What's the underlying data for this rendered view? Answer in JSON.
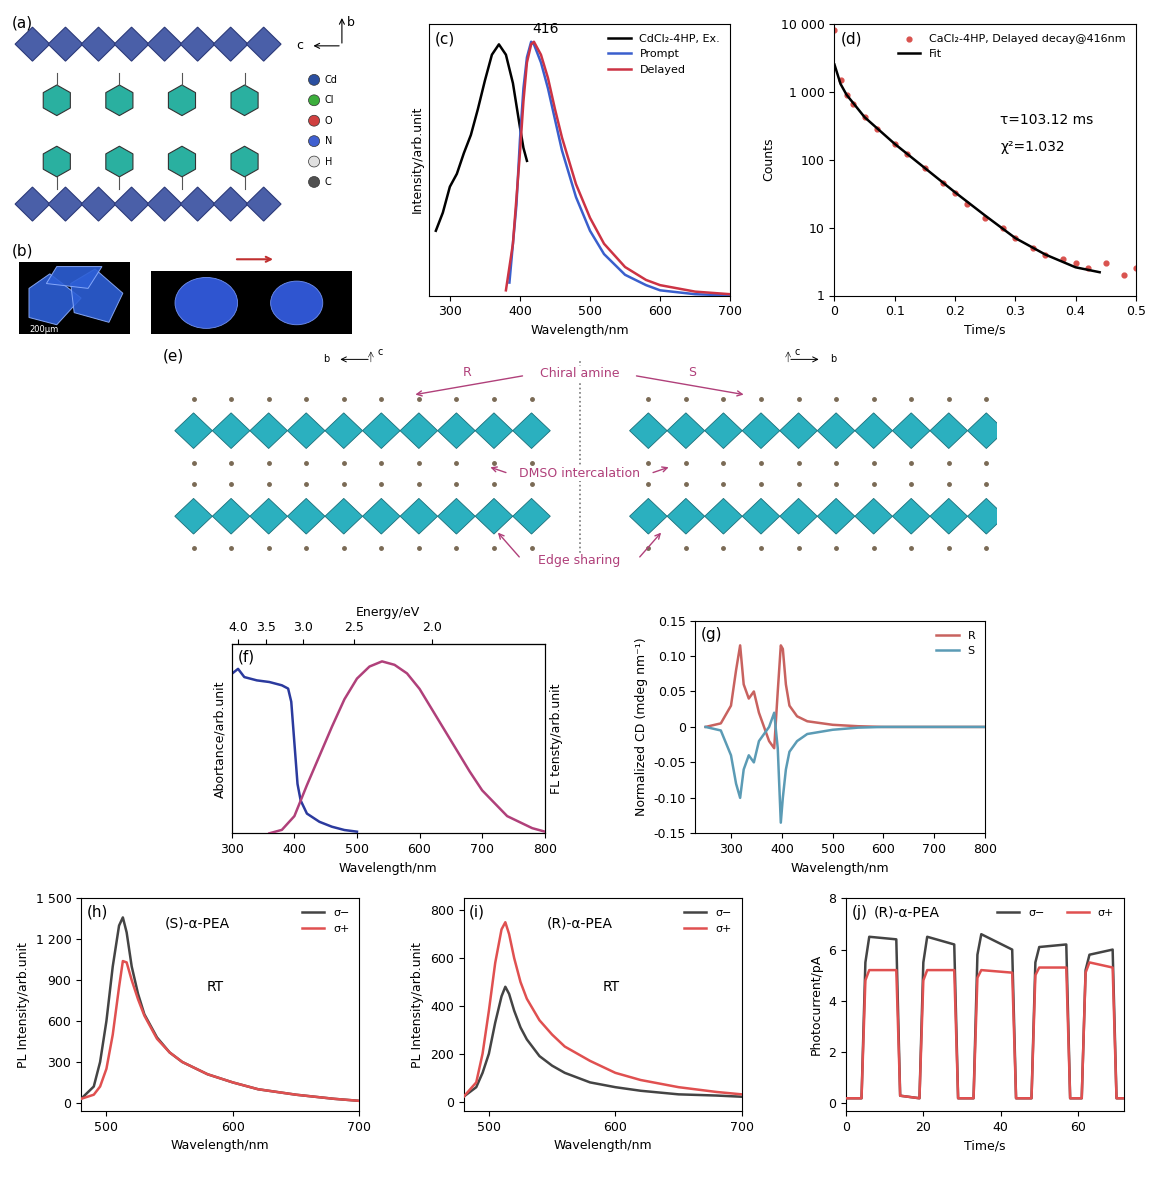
{
  "chart_data": [
    {
      "panel": "(c)",
      "type": "line",
      "xlabel": "Wavelength/nm",
      "ylabel": "Intensity/arb.unit",
      "xlim": [
        270,
        700
      ],
      "xticks": [
        300,
        400,
        500,
        600,
        700
      ],
      "ylim": [
        0,
        1.05
      ],
      "yticks": [],
      "tick_labels": "x",
      "legend": "upper right",
      "annotations": [
        "416"
      ],
      "series": [
        {
          "name": "CdCl₂-4HP, Ex.",
          "color": "#000000",
          "x": [
            280,
            290,
            300,
            310,
            320,
            330,
            340,
            350,
            360,
            370,
            380,
            390,
            400,
            405,
            410
          ],
          "values": [
            0.25,
            0.32,
            0.42,
            0.47,
            0.55,
            0.62,
            0.72,
            0.83,
            0.93,
            0.97,
            0.93,
            0.82,
            0.65,
            0.57,
            0.52
          ]
        },
        {
          "name": "Prompt",
          "color": "#3a5fcd",
          "x": [
            385,
            395,
            400,
            405,
            410,
            416,
            420,
            430,
            440,
            450,
            460,
            480,
            500,
            520,
            550,
            580,
            600,
            650,
            700
          ],
          "values": [
            0.05,
            0.35,
            0.6,
            0.8,
            0.92,
            0.98,
            0.97,
            0.9,
            0.8,
            0.68,
            0.56,
            0.38,
            0.25,
            0.16,
            0.08,
            0.04,
            0.02,
            0.005,
            0
          ]
        },
        {
          "name": "Delayed",
          "color": "#cc3344",
          "x": [
            380,
            390,
            400,
            405,
            410,
            416,
            420,
            430,
            440,
            450,
            460,
            480,
            500,
            520,
            550,
            580,
            600,
            650,
            700
          ],
          "values": [
            0.02,
            0.2,
            0.55,
            0.75,
            0.9,
            0.97,
            0.98,
            0.93,
            0.84,
            0.72,
            0.61,
            0.43,
            0.3,
            0.2,
            0.11,
            0.06,
            0.04,
            0.015,
            0.005
          ]
        }
      ]
    },
    {
      "panel": "(d)",
      "type": "scatter",
      "log": "y",
      "xlabel": "Time/s",
      "ylabel": "Counts",
      "xlim": [
        0,
        0.5
      ],
      "xticks": [
        0,
        0.1,
        0.2,
        0.3,
        0.4,
        0.5
      ],
      "ylim": [
        1,
        10000
      ],
      "yticks": [
        1,
        10,
        100,
        {
          "value": 1000,
          "label": "1 000"
        },
        {
          "value": 10000,
          "label": "10 000"
        }
      ],
      "legend": "upper right",
      "annotations": [
        "τ=103.12 ms",
        "χ²=1.032"
      ],
      "series": [
        {
          "name": "CaCl₂-4HP, Delayed decay@416nm",
          "color": "#d9534f",
          "type": "scatter",
          "marker": "o",
          "x": [
            0,
            0.01,
            0.02,
            0.03,
            0.05,
            0.07,
            0.1,
            0.12,
            0.15,
            0.18,
            0.2,
            0.22,
            0.25,
            0.28,
            0.3,
            0.33,
            0.35,
            0.38,
            0.4,
            0.42,
            0.45,
            0.48,
            0.5
          ],
          "values": [
            8000,
            1500,
            900,
            650,
            420,
            280,
            170,
            120,
            75,
            45,
            32,
            22,
            14,
            10,
            7,
            5,
            4,
            3.5,
            3,
            2.5,
            3,
            2,
            2.5
          ]
        },
        {
          "name": "Fit",
          "color": "#000000",
          "type": "line",
          "x": [
            0,
            0.01,
            0.02,
            0.05,
            0.1,
            0.15,
            0.2,
            0.25,
            0.3,
            0.35,
            0.4,
            0.44
          ],
          "values": [
            2500,
            1300,
            900,
            420,
            170,
            75,
            33,
            15,
            7,
            4,
            2.6,
            2.2
          ]
        }
      ]
    },
    {
      "panel": "(f)",
      "type": "line",
      "xlabel": "Wavelength/nm",
      "ylabel": "Abortance/arb.unit",
      "y2label": "FL tensty/arb.unit",
      "x2label": "Energy/eV",
      "x2ticks": [
        4.0,
        3.5,
        3.0,
        2.5,
        2.0
      ],
      "xlim": [
        300,
        800
      ],
      "xticks": [
        300,
        400,
        500,
        600,
        700,
        800
      ],
      "ylim": [
        0,
        1.15
      ],
      "yticks": [],
      "y2lim": [
        0,
        1.1
      ],
      "y2ticks": [],
      "tick_labels": "x",
      "series": [
        {
          "name": "Abortance",
          "color": "#2b3a9e",
          "x": [
            300,
            310,
            320,
            340,
            360,
            380,
            390,
            395,
            400,
            405,
            410,
            420,
            440,
            460,
            480,
            500
          ],
          "values": [
            0.97,
            1.0,
            0.95,
            0.93,
            0.92,
            0.9,
            0.88,
            0.8,
            0.55,
            0.3,
            0.2,
            0.12,
            0.07,
            0.04,
            0.02,
            0.01
          ]
        },
        {
          "name": "FL",
          "color": "#b0407a",
          "axis": "y2",
          "x": [
            360,
            380,
            400,
            420,
            440,
            460,
            480,
            500,
            520,
            540,
            560,
            580,
            600,
            620,
            640,
            660,
            680,
            700,
            740,
            780,
            800
          ],
          "values": [
            0,
            0.02,
            0.1,
            0.28,
            0.45,
            0.62,
            0.78,
            0.9,
            0.97,
            1.0,
            0.98,
            0.93,
            0.84,
            0.72,
            0.6,
            0.48,
            0.36,
            0.25,
            0.1,
            0.03,
            0.01
          ]
        }
      ]
    },
    {
      "panel": "(g)",
      "type": "line",
      "xlabel": "Wavelength/nm",
      "ylabel": "Normalized CD (mdeg nm⁻¹)",
      "xlim": [
        230,
        800
      ],
      "xticks": [
        300,
        400,
        500,
        600,
        700,
        800
      ],
      "ylim": [
        -0.15,
        0.15
      ],
      "yticks": [
        {
          "value": -0.15,
          "label": "-0.15"
        },
        {
          "value": -0.1,
          "label": "-0.10"
        },
        {
          "value": -0.05,
          "label": "-0.05"
        },
        0,
        {
          "value": 0.05,
          "label": "0.05"
        },
        {
          "value": 0.1,
          "label": "0.10"
        },
        {
          "value": 0.15,
          "label": "0.15"
        }
      ],
      "legend": "upper right",
      "series": [
        {
          "name": "R",
          "color": "#c8625f",
          "x": [
            250,
            280,
            300,
            310,
            318,
            325,
            335,
            345,
            355,
            365,
            375,
            385,
            392,
            398,
            402,
            408,
            415,
            430,
            450,
            500,
            550,
            600,
            650,
            700,
            800
          ],
          "values": [
            0,
            0.005,
            0.03,
            0.08,
            0.115,
            0.06,
            0.04,
            0.05,
            0.02,
            0.0,
            -0.02,
            -0.03,
            0.05,
            0.115,
            0.11,
            0.06,
            0.03,
            0.015,
            0.008,
            0.003,
            0.001,
            0,
            0,
            0,
            0
          ]
        },
        {
          "name": "S",
          "color": "#5b9bb5",
          "x": [
            250,
            280,
            300,
            310,
            318,
            325,
            335,
            345,
            355,
            365,
            375,
            385,
            392,
            398,
            402,
            408,
            415,
            430,
            450,
            500,
            550,
            600,
            650,
            700,
            800
          ],
          "values": [
            0,
            -0.005,
            -0.04,
            -0.08,
            -0.1,
            -0.06,
            -0.04,
            -0.05,
            -0.02,
            -0.01,
            0.0,
            0.02,
            -0.03,
            -0.135,
            -0.1,
            -0.06,
            -0.035,
            -0.02,
            -0.01,
            -0.004,
            -0.001,
            0,
            0,
            0,
            0
          ]
        }
      ]
    },
    {
      "panel": "(h)",
      "type": "line",
      "xlabel": "Wavelength/nm",
      "ylabel": "PL Intensity/arb.unit",
      "xlim": [
        480,
        700
      ],
      "xticks": [
        500,
        600,
        700
      ],
      "ylim": [
        -60,
        1500
      ],
      "yticks": [
        0,
        300,
        600,
        900,
        {
          "value": 1200,
          "label": "1 200"
        },
        {
          "value": 1500,
          "label": "1 500"
        }
      ],
      "legend": "upper right",
      "annotations": [
        "(S)-α-PEA",
        "RT"
      ],
      "series": [
        {
          "name": "σ−",
          "color": "#444444",
          "x": [
            480,
            490,
            495,
            500,
            505,
            510,
            513,
            516,
            520,
            525,
            530,
            540,
            550,
            560,
            580,
            600,
            620,
            650,
            680,
            700
          ],
          "values": [
            30,
            120,
            300,
            600,
            1000,
            1300,
            1360,
            1250,
            1000,
            800,
            650,
            480,
            370,
            300,
            210,
            150,
            100,
            60,
            30,
            15
          ]
        },
        {
          "name": "σ+",
          "color": "#e05050",
          "x": [
            480,
            490,
            495,
            500,
            505,
            510,
            513,
            516,
            520,
            525,
            530,
            540,
            550,
            560,
            580,
            600,
            620,
            650,
            680,
            700
          ],
          "values": [
            30,
            60,
            120,
            250,
            500,
            850,
            1040,
            1030,
            900,
            760,
            640,
            470,
            370,
            300,
            210,
            150,
            100,
            60,
            30,
            15
          ]
        }
      ]
    },
    {
      "panel": "(i)",
      "type": "line",
      "xlabel": "Wavelength/nm",
      "ylabel": "PL Intensity/arb.unit",
      "xlim": [
        480,
        700
      ],
      "xticks": [
        500,
        600,
        700
      ],
      "ylim": [
        -40,
        850
      ],
      "yticks": [
        0,
        200,
        400,
        600,
        800
      ],
      "legend": "upper right",
      "annotations": [
        "(R)-α-PEA",
        "RT"
      ],
      "series": [
        {
          "name": "σ−",
          "color": "#444444",
          "x": [
            480,
            490,
            495,
            500,
            505,
            510,
            513,
            516,
            520,
            525,
            530,
            540,
            550,
            560,
            580,
            600,
            620,
            650,
            680,
            700
          ],
          "values": [
            20,
            60,
            120,
            200,
            330,
            440,
            480,
            450,
            380,
            310,
            260,
            190,
            150,
            120,
            80,
            60,
            45,
            30,
            25,
            20
          ]
        },
        {
          "name": "σ+",
          "color": "#e05050",
          "x": [
            480,
            490,
            495,
            500,
            505,
            510,
            513,
            516,
            520,
            525,
            530,
            540,
            550,
            560,
            580,
            600,
            620,
            650,
            680,
            700
          ],
          "values": [
            20,
            80,
            200,
            380,
            580,
            720,
            750,
            700,
            600,
            500,
            430,
            340,
            280,
            230,
            170,
            120,
            90,
            60,
            40,
            30
          ]
        }
      ]
    },
    {
      "panel": "(j)",
      "type": "line",
      "xlabel": "Time/s",
      "ylabel": "Photocurrent/pA",
      "xlim": [
        0,
        72
      ],
      "xticks": [
        0,
        20,
        40,
        60
      ],
      "ylim": [
        -0.3,
        8
      ],
      "yticks": [
        0,
        2,
        4,
        6,
        8
      ],
      "legend": "upper right",
      "annotations": [
        "(R)-α-PEA"
      ],
      "series": [
        {
          "name": "σ−",
          "color": "#444444",
          "x": [
            0,
            4,
            5,
            6,
            13,
            14,
            19,
            20,
            21,
            28,
            29,
            33,
            34,
            35,
            43,
            44,
            48,
            49,
            50,
            57,
            58,
            61,
            62,
            63,
            69,
            70,
            72
          ],
          "values": [
            0.2,
            0.2,
            5.5,
            6.5,
            6.4,
            0.3,
            0.2,
            5.5,
            6.5,
            6.2,
            0.2,
            0.2,
            5.8,
            6.6,
            6.0,
            0.2,
            0.2,
            5.5,
            6.1,
            6.2,
            0.2,
            0.2,
            5.2,
            5.8,
            6.0,
            0.2,
            0.2
          ]
        },
        {
          "name": "σ+",
          "color": "#e05050",
          "x": [
            0,
            4,
            5,
            6,
            13,
            14,
            19,
            20,
            21,
            28,
            29,
            33,
            34,
            35,
            43,
            44,
            48,
            49,
            50,
            57,
            58,
            61,
            62,
            63,
            69,
            70,
            72
          ],
          "values": [
            0.2,
            0.2,
            4.8,
            5.2,
            5.2,
            0.3,
            0.2,
            4.8,
            5.2,
            5.2,
            0.2,
            0.2,
            4.9,
            5.2,
            5.1,
            0.2,
            0.2,
            5.0,
            5.3,
            5.3,
            0.2,
            0.2,
            5.1,
            5.5,
            5.3,
            0.2,
            0.2
          ]
        }
      ]
    }
  ],
  "diagrams": {
    "a": {
      "label": "(a)",
      "axes": [
        "b",
        "c"
      ],
      "legend": [
        "Cd",
        "Cl",
        "O",
        "N",
        "H",
        "C"
      ]
    },
    "b": {
      "label": "(b)",
      "scale_bar": "200μm"
    },
    "e": {
      "label": "(e)",
      "axes": [
        "b",
        "c"
      ],
      "texts": {
        "chiral": "Chiral amine",
        "left": "R",
        "right": "S",
        "intercalation": "DMSO intercalation",
        "sharing": "Edge sharing"
      }
    }
  }
}
